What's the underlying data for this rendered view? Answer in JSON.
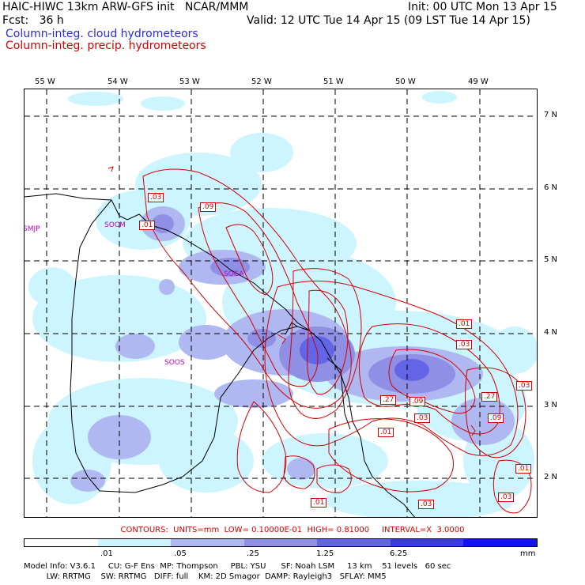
{
  "header": {
    "model_line": "HAIC-HIWC 13km ARW-GFS init   NCAR/MMM",
    "init_line": "Init: 00 UTC Mon 13 Apr 15",
    "fcst_line": "Fcst:   36 h",
    "valid_line": "Valid: 12 UTC Tue 14 Apr 15 (09 LST Tue 14 Apr 15)",
    "cloud_label": "Column-integ. cloud hydrometeors",
    "precip_label": "Column-integ. precip. hydrometeors",
    "cloud_color": "#2b2bd6",
    "precip_color": "#d40000"
  },
  "map": {
    "lon_labels": [
      "55 W",
      "54 W",
      "53 W",
      "52 W",
      "51 W",
      "50 W",
      "49 W"
    ],
    "lat_labels": [
      "7 N",
      "6 N",
      "5 N",
      "4 N",
      "3 N",
      "2 N"
    ],
    "stations": [
      "SMJP",
      "SOCM",
      "SOCA",
      "SOOS"
    ],
    "contour_labels": [
      ".03",
      ".09",
      ".01",
      ".01",
      ".03",
      ".27",
      ".09",
      ".03",
      ".01",
      ".27",
      ".09",
      ".03",
      ".01",
      ".01",
      ".03",
      ".03"
    ],
    "station_color": "#c400c4",
    "coast_color": "#000000",
    "contour_color": "#d40000"
  },
  "legend": {
    "contours_text": "CONTOURS:  UNITS=mm  LOW= 0.10000E-01  HIGH= 0.81000     INTERVAL=X  3.0000",
    "color_levels": [
      ".01",
      ".05",
      ".25",
      "1.25",
      "6.25"
    ],
    "units": "mm",
    "colors": [
      "#ffffff",
      "#ccf5ff",
      "#b0b8f2",
      "#8f8fe6",
      "#6464e6",
      "#3c3cdc",
      "#1414e8"
    ]
  },
  "footer": {
    "line1": "Model Info: V3.6.1     CU: G-F Ens  MP: Thompson     PBL: YSU      SF: Noah LSM     13 km    51 levels   60 sec",
    "line2": "         LW: RRTMG    SW: RRTMG   DIFF: full    KM: 2D Smagor  DAMP: Rayleigh3   SFLAY: MM5"
  }
}
